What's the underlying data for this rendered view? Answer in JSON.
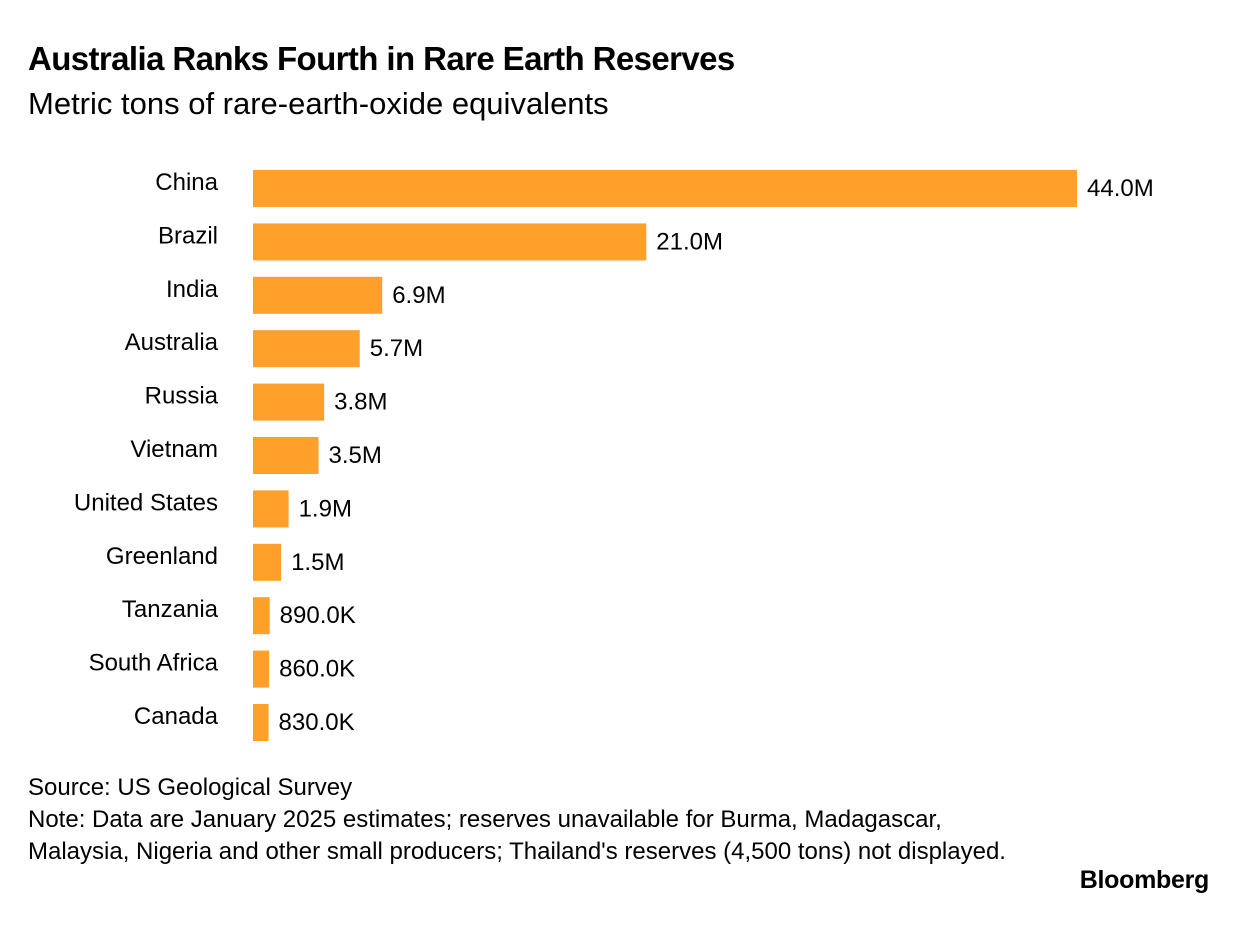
{
  "header": {
    "title": "Australia Ranks Fourth in Rare Earth Reserves",
    "subtitle": "Metric tons of rare-earth-oxide equivalents"
  },
  "chart_data": {
    "type": "bar",
    "orientation": "horizontal",
    "title": "Australia Ranks Fourth in Rare Earth Reserves",
    "subtitle": "Metric tons of rare-earth-oxide equivalents",
    "xlabel": "",
    "ylabel": "",
    "categories": [
      "China",
      "Brazil",
      "India",
      "Australia",
      "Russia",
      "Vietnam",
      "United States",
      "Greenland",
      "Tanzania",
      "South Africa",
      "Canada"
    ],
    "values": [
      44000000,
      21000000,
      6900000,
      5700000,
      3800000,
      3500000,
      1900000,
      1500000,
      890000,
      860000,
      830000
    ],
    "value_labels": [
      "44.0M",
      "21.0M",
      "6.9M",
      "5.7M",
      "3.8M",
      "3.5M",
      "1.9M",
      "1.5M",
      "890.0K",
      "860.0K",
      "830.0K"
    ],
    "xlim": [
      0,
      44000000
    ],
    "grid": false,
    "legend": "none",
    "bar_color": "#FFA02B"
  },
  "footer": {
    "source": "Source: US Geological Survey",
    "note": "Note: Data are January 2025 estimates; reserves unavailable for Burma, Madagascar, Malaysia, Nigeria and other small producers; Thailand's reserves (4,500 tons) not displayed.",
    "brand": "Bloomberg"
  }
}
